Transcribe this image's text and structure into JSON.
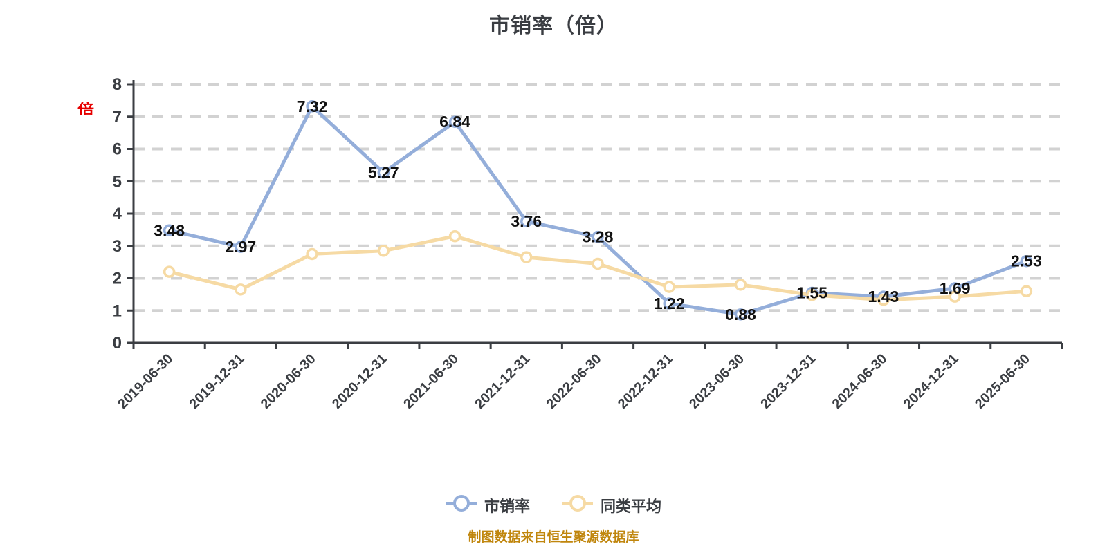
{
  "title": "市销率（倍）",
  "y_axis_unit": "倍",
  "footer": "制图数据来自恒生聚源数据库",
  "colors": {
    "series_psr": "#94aeda",
    "series_avg": "#f6daa4",
    "grid": "#d2d2d2",
    "axis": "#3b3e43",
    "data_label": "#111111",
    "footer_text": "#c0860d",
    "unit_label": "#e60000",
    "marker_fill": "#ffffff"
  },
  "chart_data": {
    "type": "line",
    "title": "市销率（倍）",
    "categories": [
      "2019-06-30",
      "2019-12-31",
      "2020-06-30",
      "2020-12-31",
      "2021-06-30",
      "2021-12-31",
      "2022-06-30",
      "2022-12-31",
      "2023-06-30",
      "2023-12-31",
      "2024-06-30",
      "2024-12-31",
      "2025-06-30"
    ],
    "series": [
      {
        "name": "市销率",
        "color": "#94aeda",
        "values": [
          3.48,
          2.97,
          7.32,
          5.27,
          6.84,
          3.76,
          3.28,
          1.22,
          0.88,
          1.55,
          1.43,
          1.69,
          2.53
        ],
        "labels_visible": true
      },
      {
        "name": "同类平均",
        "color": "#f6daa4",
        "values": [
          2.2,
          1.65,
          2.75,
          2.85,
          3.3,
          2.65,
          2.45,
          1.73,
          1.8,
          1.48,
          1.33,
          1.43,
          1.6
        ],
        "labels_visible": false
      }
    ],
    "ylim": [
      0,
      8
    ],
    "y_ticks": [
      0,
      1,
      2,
      3,
      4,
      5,
      6,
      7,
      8
    ],
    "xlabel": "",
    "ylabel": "倍",
    "grid": "dashed horizontal",
    "legend_position": "bottom"
  }
}
